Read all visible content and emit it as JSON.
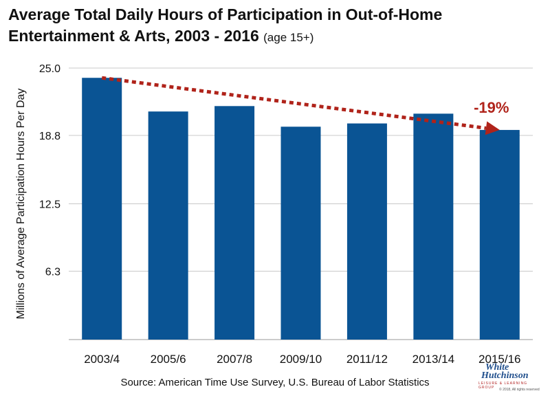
{
  "header": {
    "title": "Average Total Daily Hours of Participation in Out-of-Home Entertainment & Arts, 2003 - 2016",
    "subtitle": "(age 15+)"
  },
  "source": "Source: American Time Use Survey, U.S. Bureau of Labor Statistics",
  "logo": {
    "line1": "White",
    "line2": "Hutchinson",
    "line3": "LEISURE & LEARNING GROUP",
    "line4": "© 2018, All rights reserved"
  },
  "colors": {
    "bar": "#0a5494",
    "trend": "#b0231a",
    "grid": "#c8c8c8"
  },
  "chart_data": {
    "type": "bar",
    "categories": [
      "2003/4",
      "2005/6",
      "2007/8",
      "2009/10",
      "2011/12",
      "2013/14",
      "2015/16"
    ],
    "values": [
      24.1,
      21.0,
      21.5,
      19.6,
      19.9,
      20.8,
      19.3
    ],
    "ylabel": "Millions of Average Participation Hours Per Day",
    "xlabel": "",
    "ylim": [
      0,
      25.0
    ],
    "yticks": [
      "25.0",
      "18.8",
      "12.5",
      "6.3"
    ],
    "ytick_values": [
      25.0,
      18.8,
      12.5,
      6.3
    ],
    "grid": true,
    "annotations": [
      {
        "type": "trend-arrow",
        "from_category": "2003/4",
        "to_category": "2015/16",
        "label": "-19%"
      }
    ]
  }
}
